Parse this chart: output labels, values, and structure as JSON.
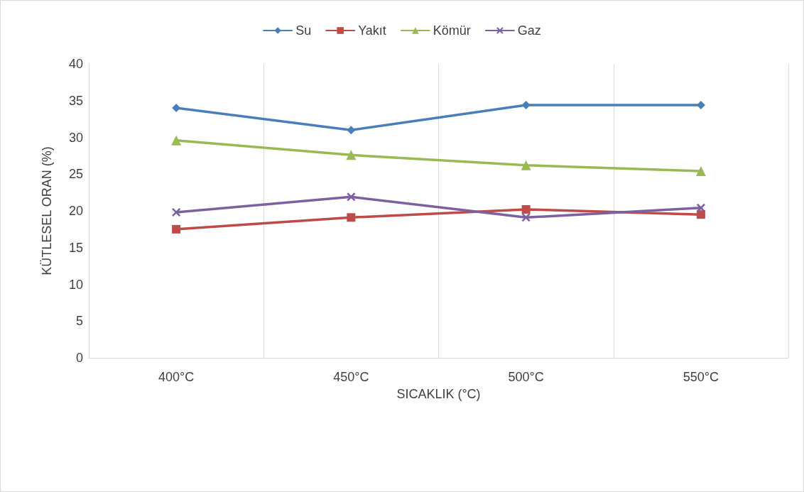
{
  "chart_data": {
    "type": "line",
    "xlabel": "SICAKLIK (°C)",
    "ylabel": "KÜTLESEL ORAN (%)",
    "categories": [
      "400°C",
      "450°C",
      "500°C",
      "550°C"
    ],
    "series": [
      {
        "name": "Su",
        "color": "#4a7ebb",
        "marker": "diamond",
        "values": [
          34.0,
          31.0,
          34.4,
          34.4
        ]
      },
      {
        "name": "Yakıt",
        "color": "#be4b48",
        "marker": "square",
        "values": [
          17.5,
          19.1,
          20.2,
          19.5
        ]
      },
      {
        "name": "Kömür",
        "color": "#98b954",
        "marker": "triangle",
        "values": [
          29.6,
          27.6,
          26.2,
          25.4
        ]
      },
      {
        "name": "Gaz",
        "color": "#7d60a0",
        "marker": "cross",
        "values": [
          19.8,
          21.9,
          19.1,
          20.4
        ]
      }
    ],
    "ylim": [
      0,
      40
    ],
    "yticks": [
      0,
      5,
      10,
      15,
      20,
      25,
      30,
      35,
      40
    ],
    "grid": "x",
    "legend": "top",
    "line_style": "solid"
  }
}
